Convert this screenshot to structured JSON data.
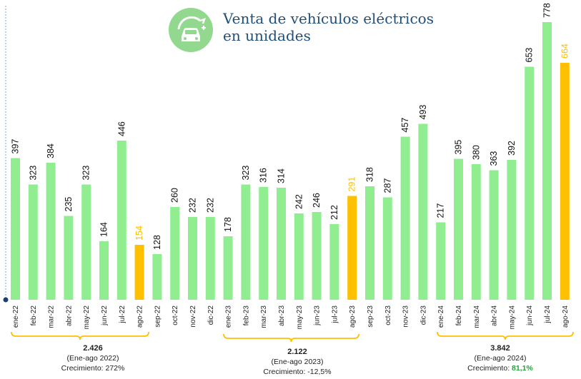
{
  "title_line1": "Venta de vehículos eléctricos",
  "title_line2": "en unidades",
  "colors": {
    "regular": "#90ee90",
    "highlight": "#ffc000",
    "highlight_label": "#ffc000",
    "growth_green": "#22a53a",
    "bracket": "#ffc000",
    "axis": "#8aa4c8"
  },
  "chart_data": {
    "type": "bar",
    "categories": [
      "ene-22",
      "feb-22",
      "mar-22",
      "abr-22",
      "may-22",
      "jun-22",
      "jul-22",
      "ago-22",
      "sep-22",
      "oct-22",
      "nov-22",
      "dic-22",
      "ene-23",
      "feb-23",
      "mar-23",
      "abr-23",
      "may-23",
      "jun-23",
      "jul-23",
      "ago-23",
      "sep-23",
      "oct-23",
      "nov-23",
      "dic-23",
      "ene-24",
      "feb-24",
      "mar-24",
      "abr-24",
      "may-24",
      "jun-24",
      "jul-24",
      "ago-24"
    ],
    "values": [
      397,
      323,
      384,
      235,
      323,
      164,
      446,
      154,
      128,
      260,
      232,
      232,
      178,
      323,
      316,
      314,
      242,
      246,
      212,
      291,
      318,
      287,
      457,
      493,
      217,
      395,
      380,
      363,
      392,
      653,
      778,
      664
    ],
    "highlighted": [
      "ago-22",
      "ago-23",
      "ago-24"
    ],
    "ylim": [
      0,
      800
    ]
  },
  "summaries": [
    {
      "total": "2.426",
      "period": "(Ene-ago 2022)",
      "growth_label": "Crecimiento: ",
      "growth_value": "272%"
    },
    {
      "total": "2.122",
      "period": "(Ene-ago 2023)",
      "growth_label": "Crecimiento: ",
      "growth_value": "-12,5%"
    },
    {
      "total": "3.842",
      "period": "(Ene-ago 2024)",
      "growth_label": "Crecimiento: ",
      "growth_value": "81,1%"
    }
  ]
}
